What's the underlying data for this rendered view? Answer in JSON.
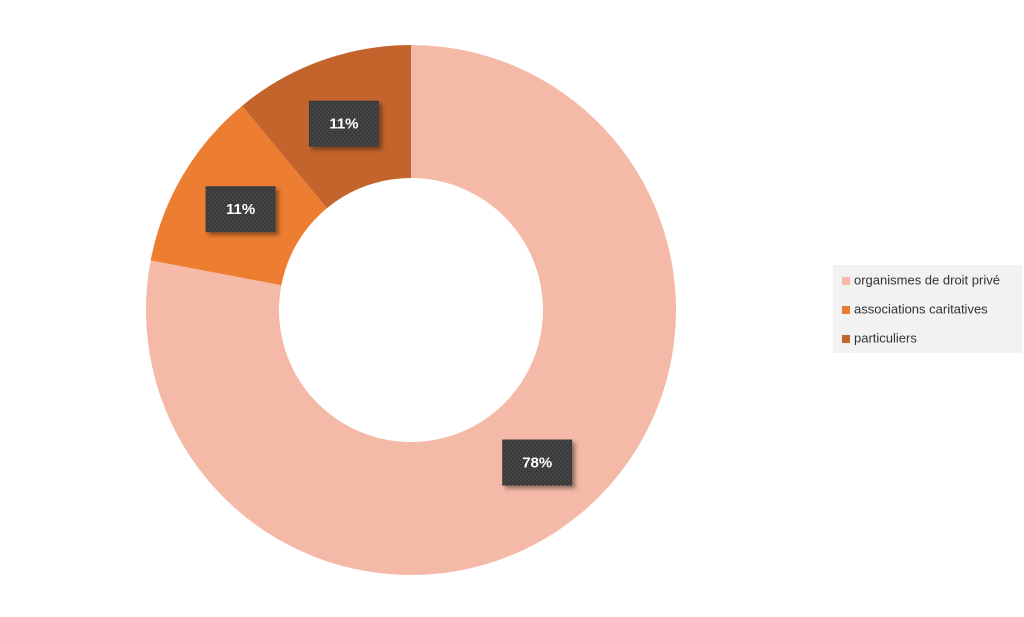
{
  "chart_data": {
    "type": "donut",
    "categories": [
      "organismes de droit privé",
      "associations caritatives",
      "particuliers"
    ],
    "values": [
      78,
      11,
      11
    ],
    "value_labels": [
      "78%",
      "11%",
      "11%"
    ],
    "colors": [
      "#f4b9a7",
      "#ed7d31",
      "#c3642c"
    ],
    "legend": "right"
  }
}
